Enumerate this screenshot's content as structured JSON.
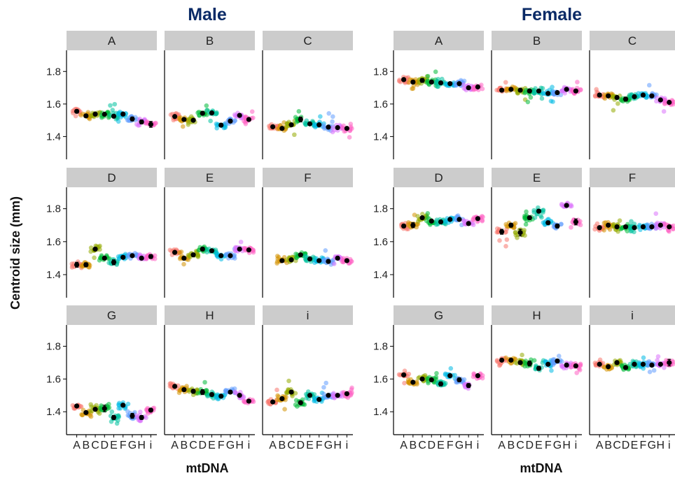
{
  "chart_data": {
    "type": "scatter",
    "titles": [
      "Male",
      "Female"
    ],
    "ylabel": "Centroid size (mm)",
    "xlabel": "mtDNA",
    "categories": [
      "A",
      "B",
      "C",
      "D",
      "E",
      "F",
      "G",
      "H",
      "i"
    ],
    "ylim": [
      1.26,
      1.93
    ],
    "yticks": [
      1.4,
      1.6,
      1.8
    ],
    "ytick_labels": [
      "1.4",
      "1.6",
      "1.8"
    ],
    "xtick_labels": [
      "A",
      "B",
      "C",
      "D",
      "E",
      "F",
      "G",
      "H",
      "i"
    ],
    "grid": false,
    "category_colors": [
      "#F8766D",
      "#D39200",
      "#93AA00",
      "#00BA38",
      "#00C19F",
      "#00B9E3",
      "#619CFF",
      "#DB72FB",
      "#FF61C3"
    ],
    "panels": [
      {
        "sex": "Male",
        "strip": "A",
        "means": [
          1.555,
          1.527,
          1.538,
          1.537,
          1.525,
          1.538,
          1.508,
          1.49,
          1.475
        ],
        "errors": [
          0.01,
          0.008,
          0.008,
          0.008,
          0.01,
          0.008,
          0.012,
          0.012,
          0.018
        ]
      },
      {
        "sex": "Male",
        "strip": "B",
        "means": [
          1.523,
          1.505,
          1.5,
          1.543,
          1.545,
          1.47,
          1.495,
          1.53,
          1.505
        ],
        "errors": [
          0.008,
          0.008,
          0.008,
          0.008,
          0.008,
          0.01,
          0.01,
          0.008,
          0.008
        ]
      },
      {
        "sex": "Male",
        "strip": "C",
        "means": [
          1.46,
          1.45,
          1.472,
          1.505,
          1.478,
          1.472,
          1.458,
          1.455,
          1.45
        ],
        "errors": [
          0.008,
          0.008,
          0.008,
          0.015,
          0.008,
          0.008,
          0.008,
          0.008,
          0.008
        ]
      },
      {
        "sex": "Male",
        "strip": "D",
        "means": [
          1.46,
          1.46,
          1.555,
          1.5,
          1.475,
          1.505,
          1.515,
          1.5,
          1.51
        ],
        "errors": [
          0.015,
          0.012,
          0.01,
          0.008,
          0.015,
          0.008,
          0.008,
          0.008,
          0.012
        ]
      },
      {
        "sex": "Male",
        "strip": "E",
        "means": [
          1.535,
          1.5,
          1.52,
          1.555,
          1.545,
          1.515,
          1.515,
          1.555,
          1.55
        ],
        "errors": [
          0.008,
          0.008,
          0.01,
          0.01,
          0.008,
          0.008,
          0.008,
          0.008,
          0.008
        ]
      },
      {
        "sex": "Male",
        "strip": "F",
        "means": [
          null,
          1.485,
          1.49,
          1.52,
          1.495,
          1.485,
          1.48,
          1.5,
          1.485
        ],
        "errors": [
          0,
          0.008,
          0.008,
          0.008,
          0.008,
          0.008,
          0.01,
          0.008,
          0.008
        ]
      },
      {
        "sex": "Male",
        "strip": "G",
        "means": [
          1.435,
          1.395,
          1.415,
          1.42,
          1.365,
          1.44,
          1.375,
          1.365,
          1.41
        ],
        "errors": [
          0.008,
          0.008,
          0.008,
          0.02,
          0.012,
          0.008,
          0.015,
          0.012,
          0.01
        ]
      },
      {
        "sex": "Male",
        "strip": "H",
        "means": [
          1.555,
          1.535,
          1.525,
          1.52,
          1.505,
          1.495,
          1.52,
          1.5,
          1.465
        ],
        "errors": [
          0.008,
          0.008,
          0.012,
          0.015,
          0.01,
          0.008,
          0.008,
          0.008,
          0.008
        ]
      },
      {
        "sex": "Male",
        "strip": "i",
        "means": [
          1.46,
          1.48,
          1.52,
          1.455,
          1.5,
          1.475,
          1.5,
          1.5,
          1.51
        ],
        "errors": [
          0.008,
          0.008,
          0.008,
          0.01,
          0.008,
          0.008,
          0.008,
          0.008,
          0.008
        ]
      },
      {
        "sex": "Female",
        "strip": "A",
        "means": [
          1.75,
          1.735,
          1.745,
          1.735,
          1.73,
          1.725,
          1.725,
          1.7,
          1.705
        ],
        "errors": [
          0.008,
          0.01,
          0.012,
          0.01,
          0.008,
          0.008,
          0.008,
          0.008,
          0.008
        ]
      },
      {
        "sex": "Female",
        "strip": "B",
        "means": [
          1.685,
          1.69,
          1.685,
          1.68,
          1.68,
          1.665,
          1.67,
          1.69,
          1.68
        ],
        "errors": [
          0.008,
          0.008,
          0.008,
          0.008,
          0.008,
          0.008,
          0.008,
          0.008,
          0.008
        ]
      },
      {
        "sex": "Female",
        "strip": "C",
        "means": [
          1.655,
          1.65,
          1.64,
          1.63,
          1.645,
          1.655,
          1.65,
          1.625,
          1.61
        ],
        "errors": [
          0.01,
          0.008,
          0.01,
          0.012,
          0.008,
          0.008,
          0.008,
          0.008,
          0.008
        ]
      },
      {
        "sex": "Female",
        "strip": "D",
        "means": [
          1.695,
          1.7,
          1.745,
          1.725,
          1.72,
          1.735,
          1.735,
          1.71,
          1.74
        ],
        "errors": [
          0.01,
          0.015,
          0.008,
          0.008,
          0.01,
          0.008,
          0.008,
          0.01,
          0.008
        ]
      },
      {
        "sex": "Female",
        "strip": "E",
        "means": [
          1.66,
          1.7,
          1.655,
          1.745,
          1.785,
          1.715,
          1.695,
          1.82,
          1.72
        ],
        "errors": [
          0.015,
          0.012,
          0.02,
          0.01,
          0.01,
          0.01,
          0.012,
          0.008,
          0.018
        ]
      },
      {
        "sex": "Female",
        "strip": "F",
        "means": [
          1.685,
          1.7,
          1.69,
          1.69,
          1.685,
          1.69,
          1.69,
          1.7,
          1.69
        ],
        "errors": [
          0.008,
          0.008,
          0.008,
          0.008,
          0.008,
          0.008,
          0.008,
          0.008,
          0.008
        ]
      },
      {
        "sex": "Female",
        "strip": "G",
        "means": [
          1.625,
          1.58,
          1.6,
          1.595,
          1.57,
          1.62,
          1.595,
          1.56,
          1.62
        ],
        "errors": [
          0.008,
          0.008,
          0.008,
          0.01,
          0.012,
          0.008,
          0.012,
          0.012,
          0.008
        ]
      },
      {
        "sex": "Female",
        "strip": "H",
        "means": [
          1.715,
          1.715,
          1.7,
          1.695,
          1.665,
          1.69,
          1.71,
          1.685,
          1.68
        ],
        "errors": [
          0.008,
          0.008,
          0.01,
          0.015,
          0.012,
          0.008,
          0.008,
          0.008,
          0.008
        ]
      },
      {
        "sex": "Female",
        "strip": "i",
        "means": [
          1.69,
          1.675,
          1.7,
          1.67,
          1.69,
          1.69,
          1.685,
          1.69,
          1.7
        ],
        "errors": [
          0.008,
          0.008,
          0.008,
          0.008,
          0.008,
          0.008,
          0.008,
          0.008,
          0.02
        ]
      }
    ]
  }
}
